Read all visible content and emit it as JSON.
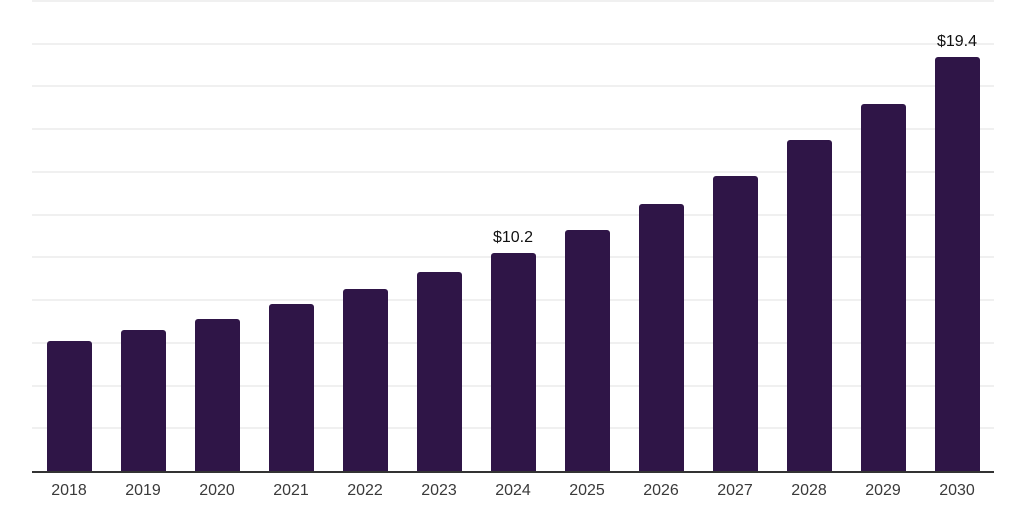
{
  "chart_data": {
    "type": "bar",
    "categories": [
      "2018",
      "2019",
      "2020",
      "2021",
      "2022",
      "2023",
      "2024",
      "2025",
      "2026",
      "2027",
      "2028",
      "2029",
      "2030"
    ],
    "values": [
      6.1,
      6.6,
      7.1,
      7.8,
      8.5,
      9.3,
      10.2,
      11.3,
      12.5,
      13.8,
      15.5,
      17.2,
      19.4
    ],
    "data_labels": {
      "2024": "$10.2",
      "2030": "$19.4"
    },
    "title": "",
    "xlabel": "",
    "ylabel": "",
    "ylim": [
      0,
      22
    ],
    "gridline_step": 2,
    "grid": "horizontal-only",
    "legend_position": "none",
    "y_tick_labels_visible": false,
    "colors": {
      "bar": "#2f1547",
      "axis_line": "#333333",
      "gridline": "#f0f0f0",
      "data_label_text": "#111111",
      "x_tick_text": "#3a3a3a",
      "background": "#ffffff"
    }
  }
}
